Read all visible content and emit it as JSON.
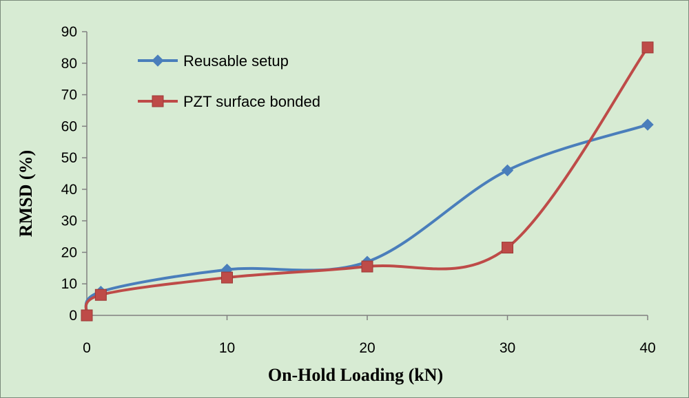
{
  "chart_data": {
    "type": "line",
    "title": "",
    "xlabel": "On-Hold Loading (kN)",
    "ylabel": "RMSD (%)",
    "xlim": [
      0,
      40
    ],
    "ylim": [
      0,
      90
    ],
    "xticks": [
      "0",
      "10",
      "20",
      "30",
      "40"
    ],
    "yticks": [
      "0",
      "10",
      "20",
      "30",
      "40",
      "50",
      "60",
      "70",
      "80",
      "90"
    ],
    "grid": false,
    "legend_position": "top-left",
    "series": [
      {
        "name": "Reusable setup",
        "color": "#4a7ebb",
        "marker": "diamond",
        "x": [
          0,
          1,
          10,
          20,
          30,
          40
        ],
        "y": [
          0,
          7.5,
          14.5,
          17,
          46,
          60.5
        ]
      },
      {
        "name": "PZT surface bonded",
        "color": "#be4b48",
        "marker": "square",
        "x": [
          0,
          1,
          10,
          20,
          30,
          40
        ],
        "y": [
          0,
          6.5,
          12,
          15.5,
          21.5,
          85
        ]
      }
    ]
  }
}
